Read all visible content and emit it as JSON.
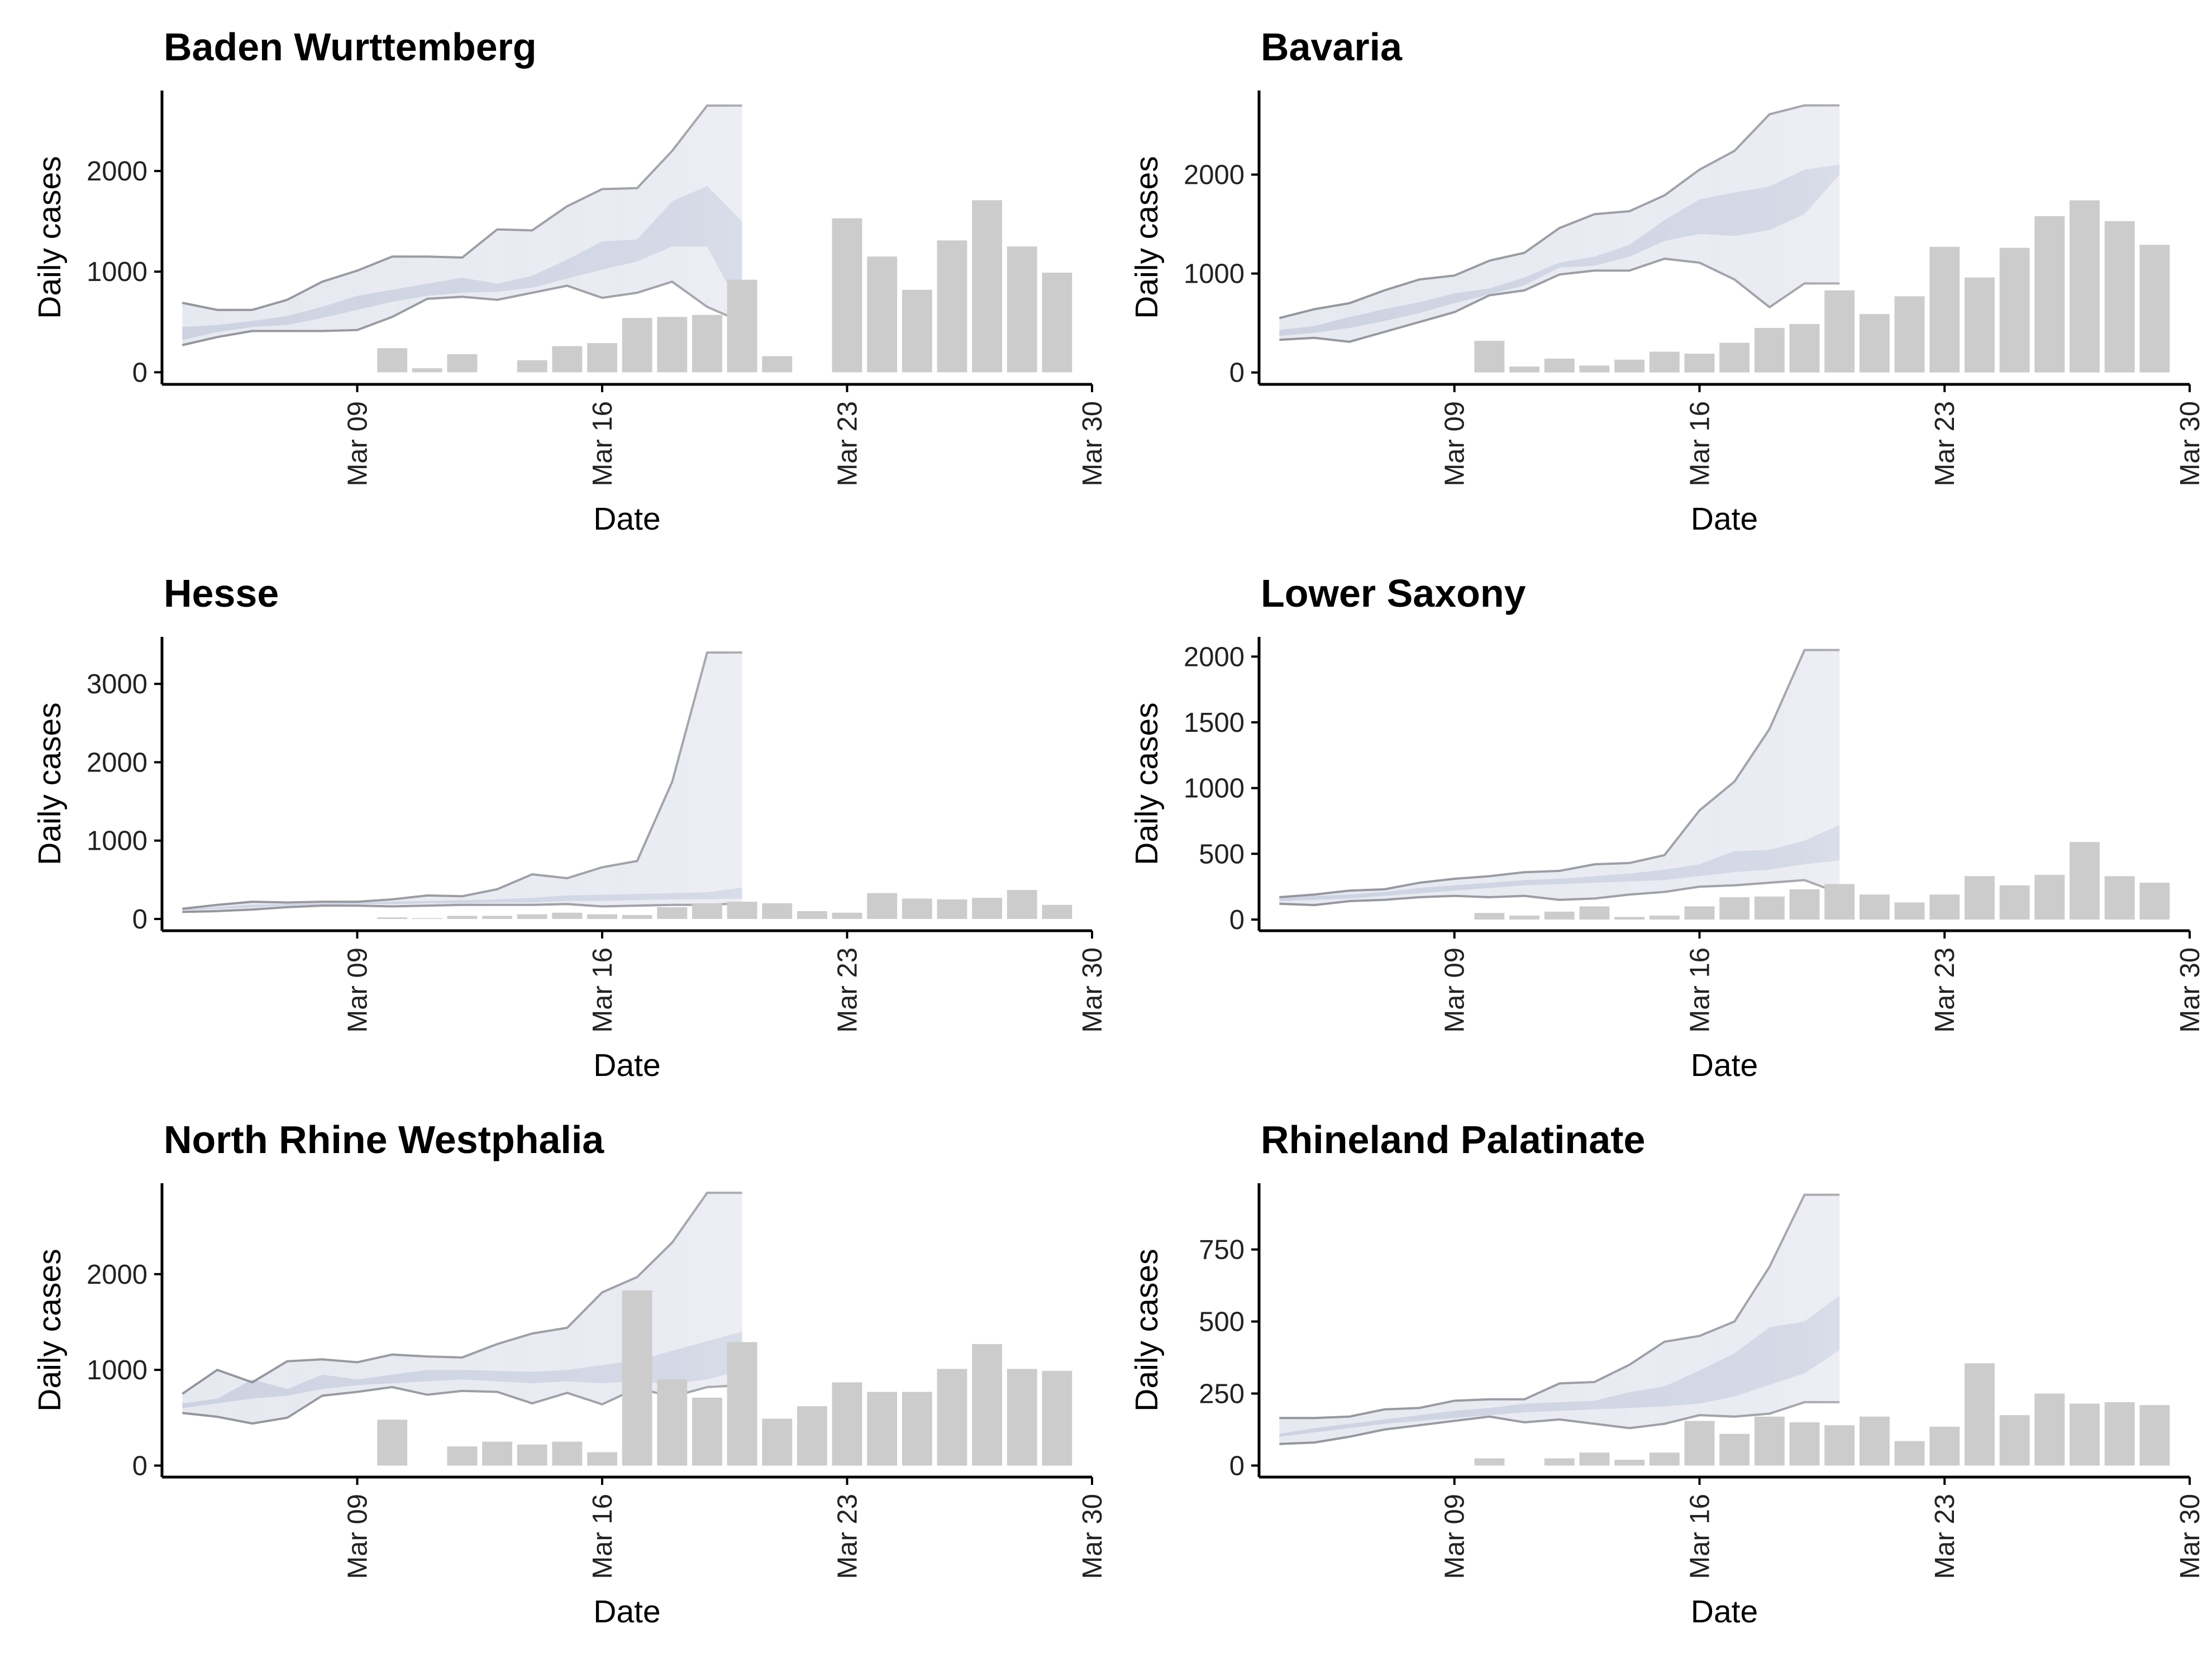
{
  "chart_data": [
    {
      "type": "bar",
      "title": "Baden Wurttemberg",
      "xlabel": "Date",
      "ylabel": "Daily cases",
      "x_ticks": [
        "Mar 09",
        "Mar 16",
        "Mar 23",
        "Mar 30"
      ],
      "y_ticks": [
        0,
        1000,
        2000
      ],
      "ylim": [
        -120,
        2800
      ],
      "grid": false,
      "legend": "none",
      "colors": {
        "bars": "#cccccc",
        "band_inner": "#c9cfe0",
        "band_outer": "#dfe2ec",
        "band_lines": "#8a8a92"
      },
      "bars": {
        "dates": [
          "2020-03-10",
          "2020-03-11",
          "2020-03-12",
          "2020-03-14",
          "2020-03-15",
          "2020-03-16",
          "2020-03-17",
          "2020-03-18",
          "2020-03-19",
          "2020-03-20",
          "2020-03-21",
          "2020-03-23",
          "2020-03-24",
          "2020-03-25",
          "2020-03-26",
          "2020-03-27",
          "2020-03-28",
          "2020-03-29"
        ],
        "values": [
          240,
          40,
          180,
          120,
          260,
          290,
          540,
          550,
          570,
          920,
          160,
          1530,
          1150,
          820,
          1310,
          1710,
          1250,
          990
        ]
      },
      "bands": {
        "dates": [
          "2020-03-04",
          "2020-03-05",
          "2020-03-06",
          "2020-03-07",
          "2020-03-08",
          "2020-03-09",
          "2020-03-10",
          "2020-03-11",
          "2020-03-12",
          "2020-03-13",
          "2020-03-14",
          "2020-03-15",
          "2020-03-16",
          "2020-03-17",
          "2020-03-18",
          "2020-03-19",
          "2020-03-20"
        ],
        "outer_low": [
          270,
          350,
          410,
          410,
          410,
          420,
          550,
          730,
          750,
          720,
          790,
          860,
          740,
          790,
          900,
          650,
          500
        ],
        "outer_high": [
          690,
          620,
          620,
          720,
          900,
          1010,
          1150,
          1150,
          1140,
          1420,
          1410,
          1650,
          1820,
          1830,
          2200,
          2650,
          2650
        ],
        "inner_low": [
          320,
          400,
          450,
          470,
          540,
          620,
          700,
          760,
          790,
          800,
          840,
          930,
          1020,
          1100,
          1250,
          1250,
          600
        ],
        "inner_high": [
          450,
          470,
          510,
          560,
          650,
          760,
          820,
          880,
          940,
          880,
          960,
          1120,
          1300,
          1320,
          1700,
          1850,
          1500
        ]
      }
    },
    {
      "type": "bar",
      "title": "Bavaria",
      "xlabel": "Date",
      "ylabel": "Daily cases",
      "x_ticks": [
        "Mar 09",
        "Mar 16",
        "Mar 23",
        "Mar 30"
      ],
      "y_ticks": [
        0,
        1000,
        2000
      ],
      "ylim": [
        -120,
        2850
      ],
      "grid": false,
      "legend": "none",
      "colors": {
        "bars": "#cccccc",
        "band_inner": "#c9cfe0",
        "band_outer": "#dfe2ec",
        "band_lines": "#8a8a92"
      },
      "bars": {
        "dates": [
          "2020-03-10",
          "2020-03-11",
          "2020-03-12",
          "2020-03-13",
          "2020-03-14",
          "2020-03-15",
          "2020-03-16",
          "2020-03-17",
          "2020-03-18",
          "2020-03-19",
          "2020-03-20",
          "2020-03-21",
          "2020-03-22",
          "2020-03-23",
          "2020-03-24",
          "2020-03-25",
          "2020-03-26",
          "2020-03-27",
          "2020-03-28",
          "2020-03-29"
        ],
        "values": [
          320,
          60,
          140,
          70,
          130,
          210,
          190,
          300,
          450,
          490,
          830,
          590,
          770,
          1270,
          960,
          1260,
          1580,
          1740,
          1530,
          1290
        ]
      },
      "bands": {
        "dates": [
          "2020-03-04",
          "2020-03-05",
          "2020-03-06",
          "2020-03-07",
          "2020-03-08",
          "2020-03-09",
          "2020-03-10",
          "2020-03-11",
          "2020-03-12",
          "2020-03-13",
          "2020-03-14",
          "2020-03-15",
          "2020-03-16",
          "2020-03-17",
          "2020-03-18",
          "2020-03-19",
          "2020-03-20"
        ],
        "outer_low": [
          330,
          350,
          310,
          410,
          510,
          610,
          780,
          830,
          990,
          1030,
          1030,
          1150,
          1110,
          940,
          660,
          900,
          900
        ],
        "outer_high": [
          550,
          640,
          700,
          830,
          940,
          980,
          1130,
          1210,
          1460,
          1600,
          1630,
          1790,
          2050,
          2240,
          2610,
          2700,
          2700
        ],
        "inner_low": [
          370,
          400,
          450,
          520,
          600,
          700,
          790,
          880,
          1060,
          1080,
          1170,
          1330,
          1400,
          1380,
          1440,
          1600,
          2000
        ],
        "inner_high": [
          430,
          470,
          560,
          640,
          710,
          800,
          850,
          960,
          1110,
          1170,
          1290,
          1540,
          1750,
          1820,
          1880,
          2050,
          2100
        ]
      }
    },
    {
      "type": "bar",
      "title": "Hesse",
      "xlabel": "Date",
      "ylabel": "Daily cases",
      "x_ticks": [
        "Mar 09",
        "Mar 16",
        "Mar 23",
        "Mar 30"
      ],
      "y_ticks": [
        0,
        1000,
        2000,
        3000
      ],
      "ylim": [
        -150,
        3600
      ],
      "grid": false,
      "legend": "none",
      "colors": {
        "bars": "#cccccc",
        "band_inner": "#c9cfe0",
        "band_outer": "#dfe2ec",
        "band_lines": "#8a8a92"
      },
      "bars": {
        "dates": [
          "2020-03-10",
          "2020-03-11",
          "2020-03-12",
          "2020-03-13",
          "2020-03-14",
          "2020-03-15",
          "2020-03-16",
          "2020-03-17",
          "2020-03-18",
          "2020-03-19",
          "2020-03-20",
          "2020-03-21",
          "2020-03-22",
          "2020-03-23",
          "2020-03-24",
          "2020-03-25",
          "2020-03-26",
          "2020-03-27",
          "2020-03-28",
          "2020-03-29"
        ],
        "values": [
          20,
          10,
          40,
          40,
          60,
          80,
          60,
          50,
          150,
          200,
          220,
          200,
          100,
          80,
          330,
          260,
          250,
          270,
          370,
          180
        ]
      },
      "bands": {
        "dates": [
          "2020-03-04",
          "2020-03-05",
          "2020-03-06",
          "2020-03-07",
          "2020-03-08",
          "2020-03-09",
          "2020-03-10",
          "2020-03-11",
          "2020-03-12",
          "2020-03-13",
          "2020-03-14",
          "2020-03-15",
          "2020-03-16",
          "2020-03-17",
          "2020-03-18",
          "2020-03-19",
          "2020-03-20"
        ],
        "outer_low": [
          90,
          100,
          120,
          150,
          170,
          170,
          160,
          170,
          180,
          180,
          180,
          190,
          160,
          170,
          180,
          180,
          200
        ],
        "outer_high": [
          130,
          180,
          220,
          210,
          220,
          220,
          250,
          300,
          290,
          380,
          570,
          520,
          660,
          740,
          1750,
          3400,
          3400
        ],
        "inner_low": [
          110,
          130,
          150,
          170,
          180,
          190,
          190,
          200,
          200,
          210,
          210,
          230,
          230,
          240,
          250,
          250,
          260
        ],
        "inner_high": [
          120,
          150,
          180,
          190,
          200,
          210,
          220,
          230,
          240,
          250,
          270,
          300,
          310,
          320,
          330,
          340,
          400
        ]
      }
    },
    {
      "type": "bar",
      "title": "Lower Saxony",
      "xlabel": "Date",
      "ylabel": "Daily cases",
      "x_ticks": [
        "Mar 09",
        "Mar 16",
        "Mar 23",
        "Mar 30"
      ],
      "y_ticks": [
        0,
        500,
        1000,
        1500,
        2000
      ],
      "ylim": [
        -85,
        2150
      ],
      "grid": false,
      "legend": "none",
      "colors": {
        "bars": "#cccccc",
        "band_inner": "#c9cfe0",
        "band_outer": "#dfe2ec",
        "band_lines": "#8a8a92"
      },
      "bars": {
        "dates": [
          "2020-03-10",
          "2020-03-11",
          "2020-03-12",
          "2020-03-13",
          "2020-03-14",
          "2020-03-15",
          "2020-03-16",
          "2020-03-17",
          "2020-03-18",
          "2020-03-19",
          "2020-03-20",
          "2020-03-21",
          "2020-03-22",
          "2020-03-23",
          "2020-03-24",
          "2020-03-25",
          "2020-03-26",
          "2020-03-27",
          "2020-03-28",
          "2020-03-29"
        ],
        "values": [
          50,
          30,
          60,
          100,
          20,
          30,
          100,
          170,
          175,
          230,
          270,
          190,
          130,
          190,
          330,
          260,
          340,
          590,
          330,
          280
        ]
      },
      "bands": {
        "dates": [
          "2020-03-04",
          "2020-03-05",
          "2020-03-06",
          "2020-03-07",
          "2020-03-08",
          "2020-03-09",
          "2020-03-10",
          "2020-03-11",
          "2020-03-12",
          "2020-03-13",
          "2020-03-14",
          "2020-03-15",
          "2020-03-16",
          "2020-03-17",
          "2020-03-18",
          "2020-03-19",
          "2020-03-20"
        ],
        "outer_low": [
          120,
          110,
          140,
          150,
          170,
          180,
          170,
          180,
          150,
          160,
          190,
          210,
          250,
          260,
          280,
          300,
          200
        ],
        "outer_high": [
          170,
          190,
          220,
          230,
          280,
          310,
          330,
          360,
          370,
          420,
          430,
          490,
          830,
          1050,
          1450,
          2050,
          2050
        ],
        "inner_low": [
          140,
          150,
          160,
          180,
          200,
          220,
          240,
          260,
          270,
          280,
          290,
          300,
          330,
          360,
          380,
          420,
          450
        ],
        "inner_high": [
          160,
          180,
          190,
          210,
          240,
          260,
          280,
          300,
          310,
          330,
          350,
          380,
          420,
          520,
          530,
          600,
          720
        ]
      }
    },
    {
      "type": "bar",
      "title": "North Rhine Westphalia",
      "xlabel": "Date",
      "ylabel": "Daily cases",
      "x_ticks": [
        "Mar 09",
        "Mar 16",
        "Mar 23",
        "Mar 30"
      ],
      "y_ticks": [
        0,
        1000,
        2000
      ],
      "ylim": [
        -120,
        2950
      ],
      "grid": false,
      "legend": "none",
      "colors": {
        "bars": "#cccccc",
        "band_inner": "#c9cfe0",
        "band_outer": "#dfe2ec",
        "band_lines": "#8a8a92"
      },
      "bars": {
        "dates": [
          "2020-03-10",
          "2020-03-12",
          "2020-03-13",
          "2020-03-14",
          "2020-03-15",
          "2020-03-16",
          "2020-03-17",
          "2020-03-18",
          "2020-03-19",
          "2020-03-20",
          "2020-03-21",
          "2020-03-22",
          "2020-03-23",
          "2020-03-24",
          "2020-03-25",
          "2020-03-26",
          "2020-03-27",
          "2020-03-28",
          "2020-03-29"
        ],
        "values": [
          480,
          200,
          250,
          220,
          250,
          140,
          1830,
          900,
          710,
          1290,
          490,
          620,
          870,
          770,
          770,
          1010,
          1270,
          1010,
          990
        ]
      },
      "bands": {
        "dates": [
          "2020-03-04",
          "2020-03-05",
          "2020-03-06",
          "2020-03-07",
          "2020-03-08",
          "2020-03-09",
          "2020-03-10",
          "2020-03-11",
          "2020-03-12",
          "2020-03-13",
          "2020-03-14",
          "2020-03-15",
          "2020-03-16",
          "2020-03-17",
          "2020-03-18",
          "2020-03-19",
          "2020-03-20"
        ],
        "outer_low": [
          550,
          510,
          440,
          500,
          730,
          770,
          820,
          740,
          780,
          770,
          650,
          760,
          640,
          810,
          720,
          820,
          840
        ],
        "outer_high": [
          750,
          1000,
          870,
          1090,
          1110,
          1080,
          1160,
          1140,
          1130,
          1270,
          1380,
          1440,
          1810,
          1970,
          2330,
          2850,
          2850
        ],
        "inner_low": [
          600,
          650,
          700,
          730,
          800,
          840,
          860,
          880,
          900,
          880,
          860,
          880,
          860,
          880,
          850,
          900,
          1000
        ],
        "inner_high": [
          650,
          700,
          900,
          800,
          950,
          900,
          950,
          1000,
          1000,
          990,
          980,
          1000,
          1050,
          1100,
          1200,
          1300,
          1400
        ]
      }
    },
    {
      "type": "bar",
      "title": "Rhineland Palatinate",
      "xlabel": "Date",
      "ylabel": "Daily cases",
      "x_ticks": [
        "Mar 09",
        "Mar 16",
        "Mar 23",
        "Mar 30"
      ],
      "y_ticks": [
        0,
        250,
        500,
        750
      ],
      "ylim": [
        -40,
        980
      ],
      "grid": false,
      "legend": "none",
      "colors": {
        "bars": "#cccccc",
        "band_inner": "#c9cfe0",
        "band_outer": "#dfe2ec",
        "band_lines": "#8a8a92"
      },
      "bars": {
        "dates": [
          "2020-03-10",
          "2020-03-12",
          "2020-03-13",
          "2020-03-14",
          "2020-03-15",
          "2020-03-16",
          "2020-03-17",
          "2020-03-18",
          "2020-03-19",
          "2020-03-20",
          "2020-03-21",
          "2020-03-22",
          "2020-03-23",
          "2020-03-24",
          "2020-03-25",
          "2020-03-26",
          "2020-03-27",
          "2020-03-28",
          "2020-03-29"
        ],
        "values": [
          25,
          25,
          45,
          20,
          45,
          155,
          110,
          170,
          150,
          140,
          170,
          85,
          135,
          355,
          175,
          250,
          215,
          220,
          210
        ]
      },
      "bands": {
        "dates": [
          "2020-03-04",
          "2020-03-05",
          "2020-03-06",
          "2020-03-07",
          "2020-03-08",
          "2020-03-09",
          "2020-03-10",
          "2020-03-11",
          "2020-03-12",
          "2020-03-13",
          "2020-03-14",
          "2020-03-15",
          "2020-03-16",
          "2020-03-17",
          "2020-03-18",
          "2020-03-19",
          "2020-03-20"
        ],
        "outer_low": [
          75,
          80,
          100,
          125,
          140,
          155,
          170,
          150,
          160,
          145,
          130,
          145,
          175,
          170,
          180,
          220,
          220
        ],
        "outer_high": [
          165,
          165,
          170,
          195,
          200,
          225,
          230,
          230,
          285,
          290,
          350,
          430,
          450,
          500,
          690,
          940,
          940
        ],
        "inner_low": [
          100,
          115,
          130,
          145,
          155,
          165,
          175,
          185,
          190,
          195,
          200,
          205,
          215,
          240,
          280,
          320,
          400
        ],
        "inner_high": [
          110,
          130,
          145,
          160,
          175,
          190,
          200,
          215,
          220,
          225,
          255,
          275,
          330,
          390,
          480,
          500,
          590
        ]
      }
    }
  ]
}
